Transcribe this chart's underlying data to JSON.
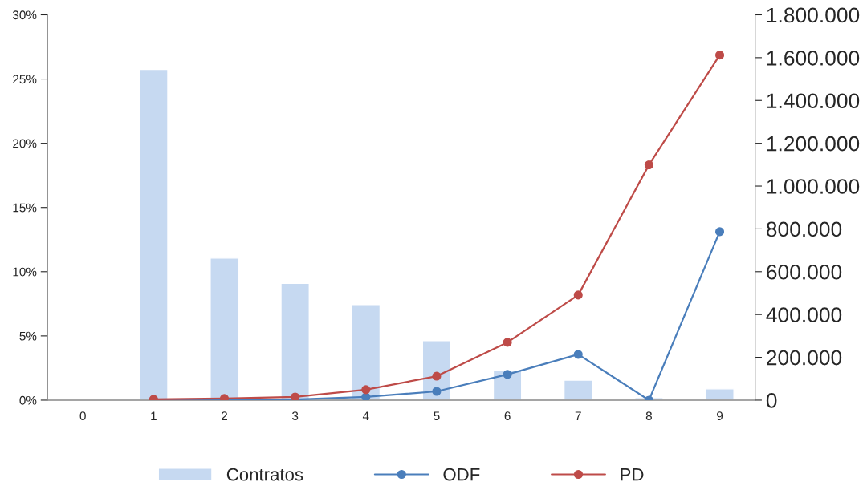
{
  "chart_data": {
    "type": "bar",
    "categories": [
      "0",
      "1",
      "2",
      "3",
      "4",
      "5",
      "6",
      "7",
      "8",
      "9"
    ],
    "series": [
      {
        "name": "Contratos",
        "color": "#c6d9f1",
        "values": [
          null,
          25.75,
          11.06,
          9.1,
          7.44,
          4.63,
          2.31,
          1.56,
          0.19,
          0.88
        ]
      },
      {
        "name": "ODF",
        "type": "line",
        "axis": "y2",
        "color": "#4a7ebb",
        "values": [
          null,
          0,
          1000,
          3000,
          15000,
          41000,
          120000,
          214000,
          0,
          787000
        ]
      },
      {
        "name": "PD",
        "type": "line",
        "axis": "y2",
        "color": "#be4b48",
        "values": [
          null,
          4000,
          8000,
          15000,
          49000,
          112000,
          270000,
          491000,
          1099000,
          1612000
        ]
      }
    ],
    "ylim": [
      0,
      30
    ],
    "yticks": [
      {
        "value": 0,
        "label": "0%"
      },
      {
        "value": 5,
        "label": "5%"
      },
      {
        "value": 10,
        "label": "10%"
      },
      {
        "value": 15,
        "label": "15%"
      },
      {
        "value": 20,
        "label": "20%"
      },
      {
        "value": 25,
        "label": "25%"
      },
      {
        "value": 30,
        "label": "30%"
      }
    ],
    "y2lim": [
      0,
      1800000
    ],
    "y2ticks": [
      {
        "value": 0,
        "label": "0"
      },
      {
        "value": 200000,
        "label": "200.000"
      },
      {
        "value": 400000,
        "label": "400.000"
      },
      {
        "value": 600000,
        "label": "600.000"
      },
      {
        "value": 800000,
        "label": "800.000"
      },
      {
        "value": 1000000,
        "label": "1.000.000"
      },
      {
        "value": 1200000,
        "label": "1.200.000"
      },
      {
        "value": 1400000,
        "label": "1.400.000"
      },
      {
        "value": 1600000,
        "label": "1.600.000"
      },
      {
        "value": 1800000,
        "label": "1.800.000"
      }
    ],
    "grid": false,
    "legend": "bottom",
    "marker": "circle",
    "line_style": "solid"
  }
}
